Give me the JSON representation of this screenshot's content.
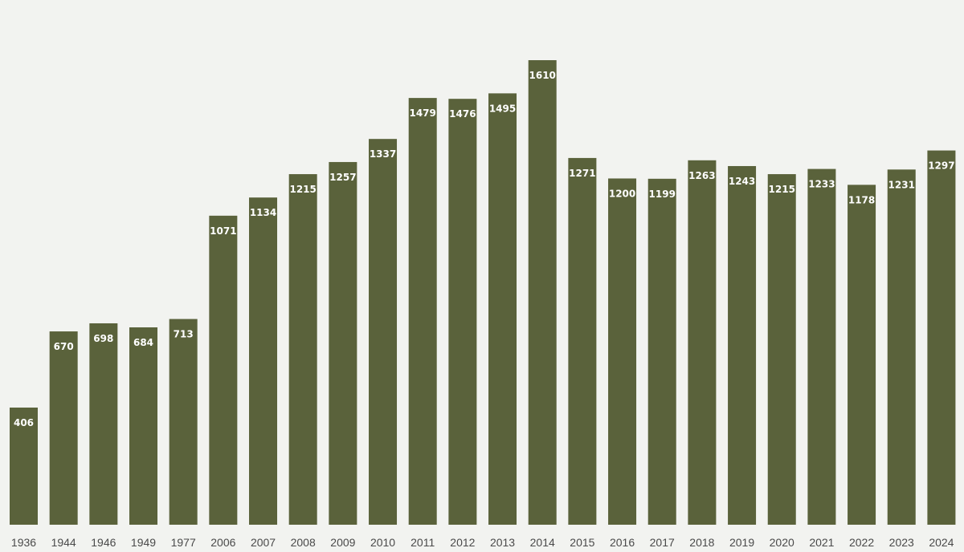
{
  "chart_data": {
    "type": "bar",
    "title": "",
    "xlabel": "",
    "ylabel": "",
    "categories": [
      "1936",
      "1944",
      "1946",
      "1949",
      "1977",
      "2006",
      "2007",
      "2008",
      "2009",
      "2010",
      "2011",
      "2012",
      "2013",
      "2014",
      "2015",
      "2016",
      "2017",
      "2018",
      "2019",
      "2020",
      "2021",
      "2022",
      "2023",
      "2024"
    ],
    "values": [
      406,
      670,
      698,
      684,
      713,
      1071,
      1134,
      1215,
      1257,
      1337,
      1479,
      1476,
      1495,
      1610,
      1271,
      1200,
      1199,
      1263,
      1243,
      1215,
      1233,
      1178,
      1231,
      1297
    ],
    "ylim": [
      0,
      1610
    ],
    "grid": false,
    "legend": "none",
    "data_labels": true,
    "colors": {
      "bar": "#5a623b",
      "background": "#f2f3f0",
      "bar_label": "#ffffff",
      "tick_label": "#4a4a4a"
    }
  }
}
